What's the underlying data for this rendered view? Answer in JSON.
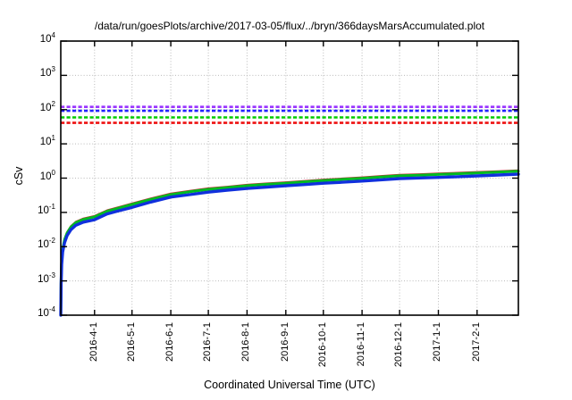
{
  "page": {
    "background": "#ffffff"
  },
  "chart_data": {
    "type": "line",
    "title": "/data/run/goesPlots/archive/2017-03-05/flux/../bryn/366daysMarsAccumulated.plot",
    "xlabel": "Coordinated Universal Time (UTC)",
    "ylabel": "cSv",
    "y_scale": "log",
    "ylim": [
      0.0001,
      10000
    ],
    "y_tick_exponents": [
      4,
      3,
      2,
      1,
      0,
      -1,
      -2,
      -3,
      -4
    ],
    "x_range_days": 366,
    "grid": true,
    "legend": "none",
    "x_ticks": [
      {
        "label": "2016-4-1",
        "day": 27
      },
      {
        "label": "2016-5-1",
        "day": 57
      },
      {
        "label": "2016-6-1",
        "day": 88
      },
      {
        "label": "2016-7-1",
        "day": 118
      },
      {
        "label": "2016-8-1",
        "day": 149
      },
      {
        "label": "2016-9-1",
        "day": 180
      },
      {
        "label": "2016-10-1",
        "day": 210
      },
      {
        "label": "2016-11-1",
        "day": 241
      },
      {
        "label": "2016-12-1",
        "day": 271
      },
      {
        "label": "2017-1-1",
        "day": 302
      },
      {
        "label": "2017-2-1",
        "day": 333
      }
    ],
    "reference_lines": [
      {
        "name": "reference-line-purple",
        "color": "#9933ff",
        "value": 120
      },
      {
        "name": "reference-line-blue",
        "color": "#2222ff",
        "value": 92
      },
      {
        "name": "reference-line-green",
        "color": "#00cc00",
        "value": 59
      },
      {
        "name": "reference-line-red",
        "color": "#ee1111",
        "value": 41
      }
    ],
    "series": [
      {
        "name": "accumulated-red",
        "color": "#bb3333",
        "width": 1.6,
        "points": [
          [
            0,
            0.0001
          ],
          [
            0.3,
            0.0011
          ],
          [
            0.7,
            0.004
          ],
          [
            1.5,
            0.009
          ],
          [
            3,
            0.017
          ],
          [
            5,
            0.027
          ],
          [
            8,
            0.04
          ],
          [
            12,
            0.054
          ],
          [
            18,
            0.067
          ],
          [
            27,
            0.08
          ],
          [
            37,
            0.117
          ],
          [
            48,
            0.149
          ],
          [
            57,
            0.184
          ],
          [
            72,
            0.26
          ],
          [
            88,
            0.36
          ],
          [
            103,
            0.43
          ],
          [
            118,
            0.51
          ],
          [
            133,
            0.57
          ],
          [
            149,
            0.65
          ],
          [
            165,
            0.71
          ],
          [
            180,
            0.77
          ],
          [
            195,
            0.84
          ],
          [
            210,
            0.92
          ],
          [
            225,
            0.99
          ],
          [
            241,
            1.07
          ],
          [
            256,
            1.17
          ],
          [
            271,
            1.26
          ],
          [
            287,
            1.32
          ],
          [
            302,
            1.38
          ],
          [
            317,
            1.45
          ],
          [
            333,
            1.53
          ],
          [
            350,
            1.62
          ],
          [
            366,
            1.72
          ]
        ]
      },
      {
        "name": "accumulated-green",
        "color": "#00bb22",
        "width": 3,
        "points": [
          [
            0,
            0.0001
          ],
          [
            0.3,
            0.001
          ],
          [
            0.7,
            0.0036
          ],
          [
            1.5,
            0.0085
          ],
          [
            3,
            0.016
          ],
          [
            5,
            0.025
          ],
          [
            8,
            0.037
          ],
          [
            12,
            0.05
          ],
          [
            18,
            0.062
          ],
          [
            27,
            0.074
          ],
          [
            37,
            0.108
          ],
          [
            48,
            0.138
          ],
          [
            57,
            0.17
          ],
          [
            72,
            0.24
          ],
          [
            88,
            0.33
          ],
          [
            103,
            0.4
          ],
          [
            118,
            0.47
          ],
          [
            133,
            0.53
          ],
          [
            149,
            0.6
          ],
          [
            165,
            0.66
          ],
          [
            180,
            0.71
          ],
          [
            195,
            0.78
          ],
          [
            210,
            0.85
          ],
          [
            225,
            0.92
          ],
          [
            241,
            0.99
          ],
          [
            256,
            1.08
          ],
          [
            271,
            1.17
          ],
          [
            287,
            1.22
          ],
          [
            302,
            1.28
          ],
          [
            317,
            1.34
          ],
          [
            333,
            1.42
          ],
          [
            350,
            1.5
          ],
          [
            366,
            1.6
          ]
        ]
      },
      {
        "name": "accumulated-blue",
        "color": "#1030dd",
        "width": 3.4,
        "points": [
          [
            0,
            0.0001
          ],
          [
            0.3,
            0.0008
          ],
          [
            0.7,
            0.003
          ],
          [
            1.5,
            0.007
          ],
          [
            3,
            0.013
          ],
          [
            5,
            0.021
          ],
          [
            8,
            0.031
          ],
          [
            12,
            0.042
          ],
          [
            18,
            0.052
          ],
          [
            27,
            0.061
          ],
          [
            37,
            0.09
          ],
          [
            48,
            0.115
          ],
          [
            57,
            0.14
          ],
          [
            72,
            0.2
          ],
          [
            88,
            0.28
          ],
          [
            103,
            0.33
          ],
          [
            118,
            0.39
          ],
          [
            133,
            0.445
          ],
          [
            149,
            0.5
          ],
          [
            165,
            0.55
          ],
          [
            180,
            0.6
          ],
          [
            195,
            0.65
          ],
          [
            210,
            0.71
          ],
          [
            225,
            0.76
          ],
          [
            241,
            0.82
          ],
          [
            256,
            0.89
          ],
          [
            271,
            0.97
          ],
          [
            287,
            1.01
          ],
          [
            302,
            1.05
          ],
          [
            317,
            1.1
          ],
          [
            333,
            1.16
          ],
          [
            350,
            1.23
          ],
          [
            366,
            1.3
          ]
        ]
      }
    ]
  }
}
